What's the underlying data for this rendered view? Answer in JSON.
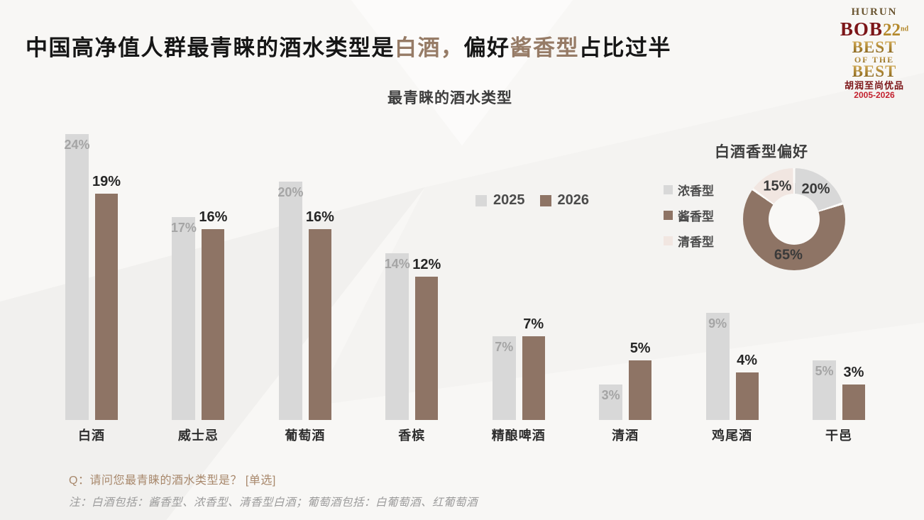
{
  "header": {
    "title_parts": [
      {
        "text": "中国高净值人群最青睐的酒水类型是",
        "accent": false
      },
      {
        "text": "白酒，",
        "accent": true
      },
      {
        "text": "偏好",
        "accent": false
      },
      {
        "text": "酱香型",
        "accent": true
      },
      {
        "text": "占比过半",
        "accent": false
      }
    ]
  },
  "logo": {
    "brand": "HURUN",
    "bob": "BOB",
    "edition": "22",
    "edition_suffix": "nd",
    "best_line1": "BEST",
    "best_line2": "OF THE",
    "best_line3": "BEST",
    "chinese": "胡润至尚优品",
    "years": "2005-2026"
  },
  "chart_data": [
    {
      "type": "bar",
      "title": "最青睐的酒水类型",
      "categories": [
        "白酒",
        "威士忌",
        "葡萄酒",
        "香槟",
        "精酿啤酒",
        "清酒",
        "鸡尾酒",
        "干邑"
      ],
      "series": [
        {
          "name": "2025",
          "color": "#d8d8d8",
          "values": [
            24,
            17,
            20,
            14,
            7,
            3,
            9,
            5
          ]
        },
        {
          "name": "2026",
          "color": "#8e7465",
          "values": [
            19,
            16,
            16,
            12,
            7,
            5,
            4,
            3
          ]
        }
      ],
      "unit": "%",
      "ylim": [
        0,
        25
      ],
      "grid": false,
      "legend_position": "middle-right",
      "value_labels": "2025 inside bar top, 2026 above bar"
    },
    {
      "type": "pie",
      "donut": true,
      "title": "白酒香型偏好",
      "labels": [
        "浓香型",
        "酱香型",
        "清香型"
      ],
      "values": [
        20,
        65,
        15
      ],
      "colors": [
        "#d8d8d8",
        "#8e7465",
        "#f1e6e1"
      ],
      "unit": "%",
      "legend_position": "left",
      "start_angle_deg": 0,
      "direction": "clockwise"
    }
  ],
  "footnotes": {
    "question": "Q：请问您最青睐的酒水类型是？ [单选]",
    "note": "注：白酒包括：酱香型、浓香型、清香型白酒；葡萄酒包括：白葡萄酒、红葡萄酒"
  },
  "colors": {
    "background": "#f8f7f5",
    "title_text": "#161616",
    "title_accent": "#967b66",
    "series_2025": "#d8d8d8",
    "series_2026": "#8e7465",
    "donut_light": "#f1e6e1",
    "gray_value_label": "#a5a5a5",
    "dark_value_label": "#262626",
    "question_text": "#a8886c",
    "note_text": "#9b9b9b",
    "logo_red": "#7c1518",
    "logo_gold": "#b4892c"
  }
}
